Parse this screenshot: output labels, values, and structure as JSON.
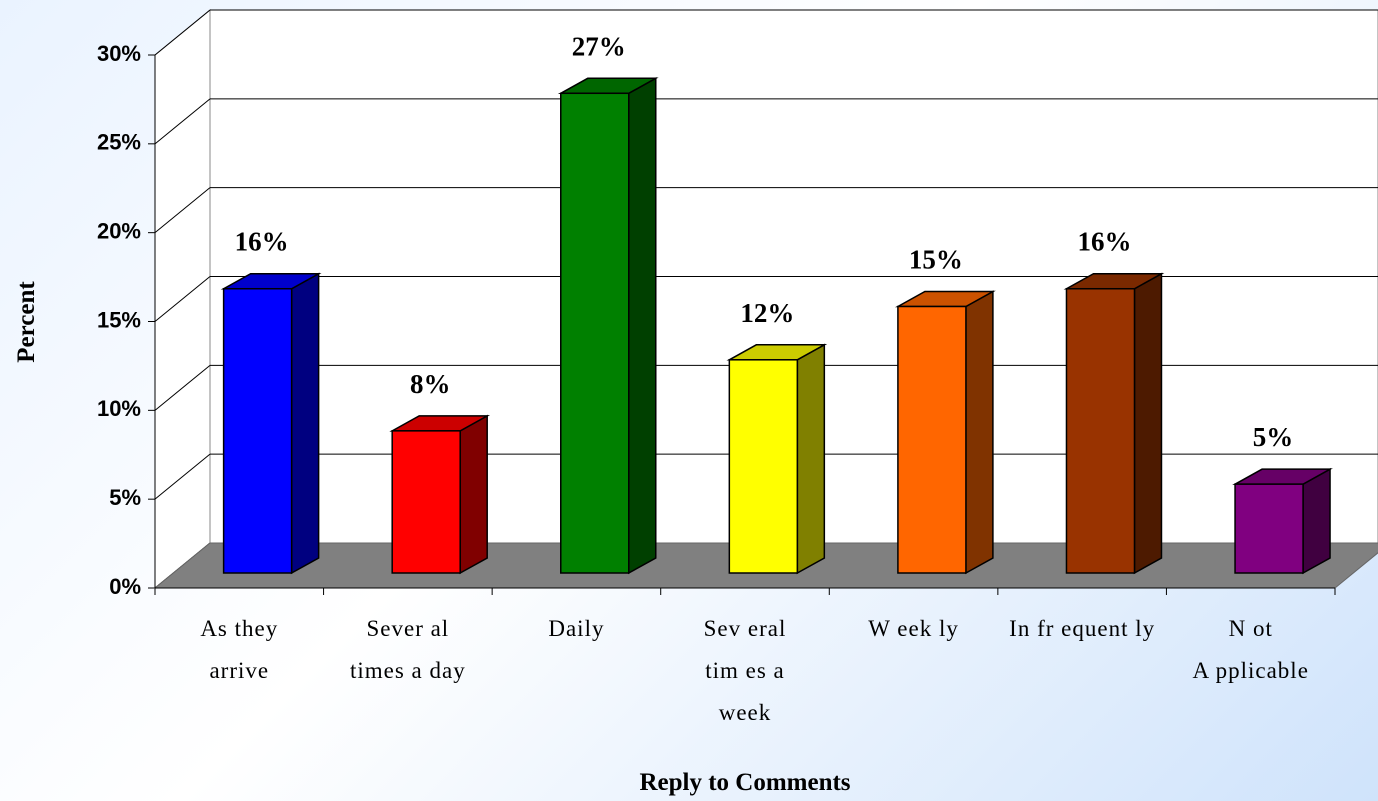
{
  "chart_data": {
    "type": "bar3d",
    "x_label": "Reply to Comments",
    "y_label": "Percent",
    "categories": [
      [
        "As they",
        "arrive"
      ],
      [
        "Sever al",
        "times a day"
      ],
      [
        "Daily"
      ],
      [
        "Sev eral",
        "tim es a",
        "week"
      ],
      [
        "W eek ly"
      ],
      [
        "In fr equent ly"
      ],
      [
        "N ot",
        "A pplicable"
      ]
    ],
    "values": [
      16,
      8,
      27,
      12,
      15,
      16,
      5
    ],
    "value_labels": [
      "16%",
      "8%",
      "27%",
      "12%",
      "15%",
      "16%",
      "5%"
    ],
    "colors": [
      "#0000ff",
      "#ff0000",
      "#008000",
      "#ffff00",
      "#ff6600",
      "#993300",
      "#800080"
    ],
    "ylim": [
      0,
      30
    ],
    "yticks": [
      {
        "value": 0,
        "label": "0%"
      },
      {
        "value": 5,
        "label": "5%"
      },
      {
        "value": 10,
        "label": "10%"
      },
      {
        "value": 15,
        "label": "15%"
      },
      {
        "value": 20,
        "label": "20%"
      },
      {
        "value": 25,
        "label": "25%"
      },
      {
        "value": 30,
        "label": "30%"
      }
    ],
    "grid": true
  }
}
